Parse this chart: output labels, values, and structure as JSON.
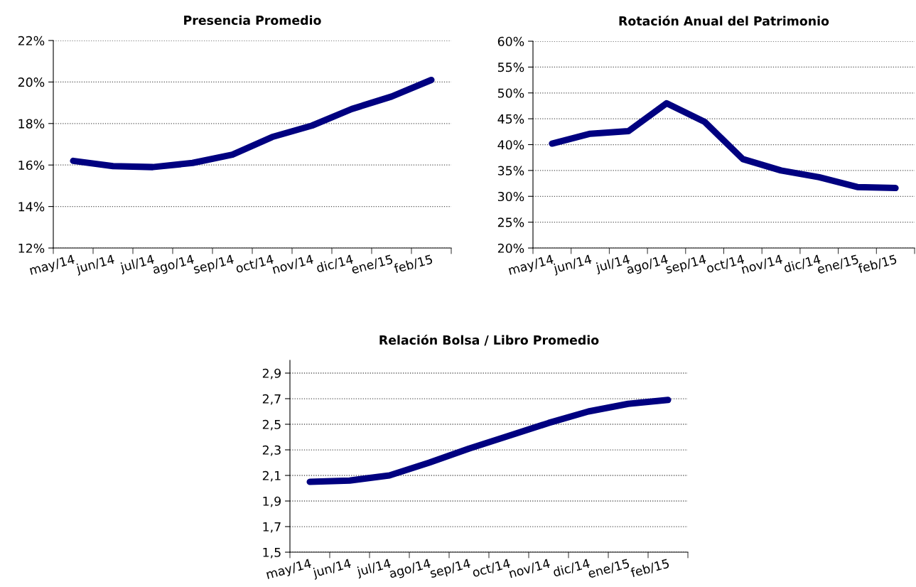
{
  "chart_data": [
    {
      "type": "line",
      "title": "Presencia Promedio",
      "categories": [
        "may/14",
        "jun/14",
        "jul/14",
        "ago/14",
        "sep/14",
        "oct/14",
        "nov/14",
        "dic/14",
        "ene/15",
        "feb/15"
      ],
      "series": [
        {
          "color": "#000080",
          "values": [
            16.2,
            15.95,
            15.9,
            16.1,
            16.5,
            17.35,
            17.9,
            18.7,
            19.3,
            20.1
          ]
        }
      ],
      "ylim": [
        12,
        22
      ],
      "yticks": [
        {
          "value": 12,
          "label": "12%"
        },
        {
          "value": 14,
          "label": "14%"
        },
        {
          "value": 16,
          "label": "16%"
        },
        {
          "value": 18,
          "label": "18%"
        },
        {
          "value": 20,
          "label": "20%"
        },
        {
          "value": 22,
          "label": "22%"
        }
      ],
      "grid": "y",
      "marker": "none",
      "line_style": "solid"
    },
    {
      "type": "line",
      "title": "Rotación Anual del Patrimonio",
      "categories": [
        "may/14",
        "jun/14",
        "jul/14",
        "ago/14",
        "sep/14",
        "oct/14",
        "nov/14",
        "dic/14",
        "ene/15",
        "feb/15"
      ],
      "series": [
        {
          "color": "#000080",
          "values": [
            40.2,
            42.1,
            42.6,
            48.0,
            44.4,
            37.2,
            35.0,
            33.7,
            31.8,
            31.6
          ]
        }
      ],
      "ylim": [
        20,
        60
      ],
      "yticks": [
        {
          "value": 20,
          "label": "20%"
        },
        {
          "value": 25,
          "label": "25%"
        },
        {
          "value": 30,
          "label": "30%"
        },
        {
          "value": 35,
          "label": "35%"
        },
        {
          "value": 40,
          "label": "40%"
        },
        {
          "value": 45,
          "label": "45%"
        },
        {
          "value": 50,
          "label": "50%"
        },
        {
          "value": 55,
          "label": "55%"
        },
        {
          "value": 60,
          "label": "60%"
        }
      ],
      "grid": "y",
      "marker": "none",
      "line_style": "solid"
    },
    {
      "type": "line",
      "title": "Relación Bolsa / Libro Promedio",
      "categories": [
        "may/14",
        "jun/14",
        "jul/14",
        "ago/14",
        "sep/14",
        "oct/14",
        "nov/14",
        "dic/14",
        "ene/15",
        "feb/15"
      ],
      "series": [
        {
          "color": "#000080",
          "values": [
            2.05,
            2.06,
            2.1,
            2.2,
            2.31,
            2.41,
            2.51,
            2.6,
            2.66,
            2.69
          ]
        }
      ],
      "ylim": [
        1.5,
        3.0
      ],
      "yticks": [
        {
          "value": 1.5,
          "label": "1,5"
        },
        {
          "value": 1.7,
          "label": "1,7"
        },
        {
          "value": 1.9,
          "label": "1,9"
        },
        {
          "value": 2.1,
          "label": "2,1"
        },
        {
          "value": 2.3,
          "label": "2,3"
        },
        {
          "value": 2.5,
          "label": "2,5"
        },
        {
          "value": 2.7,
          "label": "2,7"
        },
        {
          "value": 2.9,
          "label": "2,9"
        }
      ],
      "grid": "y",
      "marker": "none",
      "line_style": "solid"
    }
  ]
}
